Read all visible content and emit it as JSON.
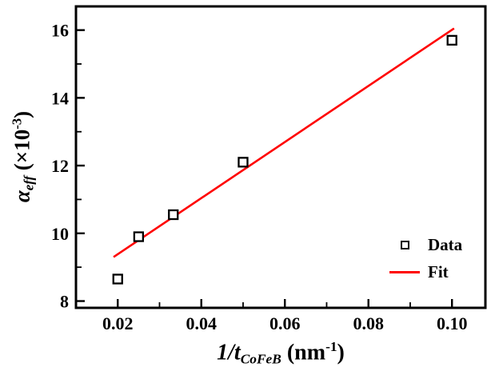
{
  "figure": {
    "background": "#ffffff",
    "axis_color": "#000000"
  },
  "chart_data": {
    "type": "scatter",
    "title": "",
    "xlabel": {
      "main": "1/t",
      "sub": "CoFeB",
      "unit_open": " (nm",
      "sup": "-1",
      "close": ")"
    },
    "ylabel": {
      "main": "α",
      "sub": "eff",
      "unit_open": " (×10",
      "sup": "-3",
      "close": ")"
    },
    "xlim": [
      0.01,
      0.108
    ],
    "ylim": [
      7.8,
      16.7
    ],
    "axis_color": "#000000",
    "grid": false,
    "xticks": {
      "values": [
        0.02,
        0.04,
        0.06,
        0.08,
        0.1
      ],
      "labels": [
        "0.02",
        "0.04",
        "0.06",
        "0.08",
        "0.10"
      ],
      "minor_step": 0.01
    },
    "yticks": {
      "values": [
        8,
        10,
        12,
        14,
        16
      ],
      "labels": [
        "8",
        "10",
        "12",
        "14",
        "16"
      ],
      "minor_step": 1
    },
    "series": [
      {
        "name": "Data",
        "kind": "scatter",
        "marker": "open-square",
        "color": "#000000",
        "points": [
          [
            0.02,
            8.65
          ],
          [
            0.025,
            9.9
          ],
          [
            0.0333,
            10.55
          ],
          [
            0.05,
            12.1
          ],
          [
            0.1,
            15.7
          ]
        ]
      },
      {
        "name": "Fit",
        "kind": "line",
        "color": "#ff0000",
        "points": [
          [
            0.019,
            9.3
          ],
          [
            0.1005,
            16.05
          ]
        ]
      }
    ],
    "legend": {
      "position": "right-center",
      "entries": [
        {
          "label": "Data",
          "marker": "open-square",
          "color": "#000000"
        },
        {
          "label": "Fit",
          "marker": "line",
          "color": "#ff0000"
        }
      ]
    }
  }
}
